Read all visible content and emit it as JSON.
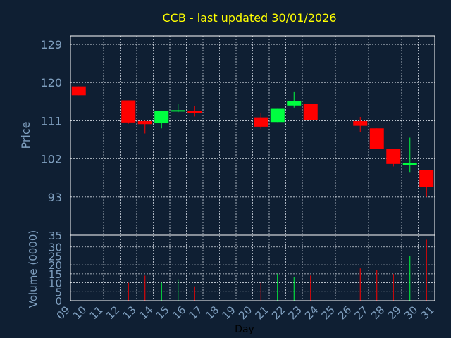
{
  "chart_data": {
    "type": "candlestick",
    "title": "CCB - last updated 30/01/2026",
    "xlabel": "Day",
    "price_ylabel": "Price",
    "volume_ylabel": "Volume (0000)",
    "x_ticks": [
      "09",
      "10",
      "11",
      "12",
      "13",
      "14",
      "15",
      "16",
      "17",
      "18",
      "19",
      "20",
      "21",
      "22",
      "23",
      "24",
      "25",
      "26",
      "27",
      "28",
      "29",
      "30",
      "31"
    ],
    "price_ticks": [
      93,
      102,
      111,
      120,
      129
    ],
    "volume_ticks": [
      0,
      5,
      10,
      15,
      20,
      25,
      30,
      35
    ],
    "price_ylim": [
      84,
      131
    ],
    "volume_ylim": [
      0,
      35
    ],
    "grid": true,
    "candles": [
      {
        "day": "09",
        "open": 119.1,
        "close": 117.0,
        "high": 119.1,
        "low": 117.0,
        "volume": null
      },
      {
        "day": "12",
        "open": 115.8,
        "close": 110.6,
        "high": 115.8,
        "low": 110.3,
        "volume": 10.0
      },
      {
        "day": "13",
        "open": 110.9,
        "close": 110.2,
        "high": 111.0,
        "low": 108.0,
        "volume": 14.0
      },
      {
        "day": "14",
        "open": 110.4,
        "close": 113.4,
        "high": 113.4,
        "low": 109.2,
        "volume": 10.0
      },
      {
        "day": "15",
        "open": 113.2,
        "close": 113.5,
        "high": 114.9,
        "low": 113.0,
        "volume": 12.0
      },
      {
        "day": "16",
        "open": 113.3,
        "close": 112.9,
        "high": 114.5,
        "low": 112.0,
        "volume": 8.0
      },
      {
        "day": "20",
        "open": 111.8,
        "close": 109.6,
        "high": 112.8,
        "low": 109.1,
        "volume": 10.0
      },
      {
        "day": "21",
        "open": 110.7,
        "close": 113.8,
        "high": 113.8,
        "low": 110.7,
        "volume": 15.0
      },
      {
        "day": "22",
        "open": 114.6,
        "close": 115.6,
        "high": 117.9,
        "low": 114.1,
        "volume": 13.0
      },
      {
        "day": "23",
        "open": 115.0,
        "close": 111.2,
        "high": 115.0,
        "low": 111.2,
        "volume": 14.0
      },
      {
        "day": "26",
        "open": 110.9,
        "close": 109.8,
        "high": 111.9,
        "low": 108.4,
        "volume": 18.0
      },
      {
        "day": "27",
        "open": 109.2,
        "close": 104.4,
        "high": 109.2,
        "low": 104.4,
        "volume": 17.0
      },
      {
        "day": "28",
        "open": 104.4,
        "close": 100.8,
        "high": 104.4,
        "low": 100.2,
        "volume": 15.0
      },
      {
        "day": "29",
        "open": 100.5,
        "close": 101.0,
        "high": 107.0,
        "low": 98.9,
        "volume": 25.0
      },
      {
        "day": "30",
        "open": 99.4,
        "close": 95.3,
        "high": 99.4,
        "low": 93.0,
        "volume": 34.0
      }
    ]
  },
  "colors": {
    "background": "#0f1f33",
    "axis": "#ffffff",
    "grid": "#d0d8e0",
    "title": "#ffff00",
    "text": "#7f9fbf",
    "up": "#00ff40",
    "down": "#ff0000"
  }
}
